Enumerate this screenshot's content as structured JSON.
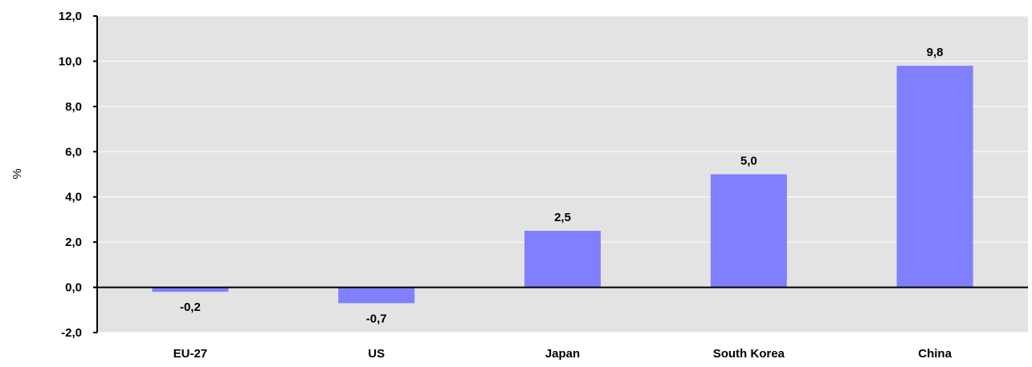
{
  "chart_data": {
    "type": "bar",
    "title": "",
    "xlabel": "",
    "ylabel": "%",
    "categories": [
      "EU-27",
      "US",
      "Japan",
      "South Korea",
      "China"
    ],
    "values": [
      -0.2,
      -0.7,
      2.5,
      5.0,
      9.8
    ],
    "data_labels": [
      "-0,2",
      "-0,7",
      "2,5",
      "5,0",
      "9,8"
    ],
    "ylim": [
      -2.0,
      12.0
    ],
    "yticks": [
      -2.0,
      0.0,
      2.0,
      4.0,
      6.0,
      8.0,
      10.0,
      12.0
    ],
    "ytick_labels": [
      "-2,0",
      "0,0",
      "2,0",
      "4,0",
      "6,0",
      "8,0",
      "10,0",
      "12,0"
    ],
    "grid": true,
    "legend": "none",
    "colors": {
      "bar": "#8080ff",
      "plot_background": "#e3e3e3",
      "gridline": "#ffffff",
      "axis": "#000000"
    }
  }
}
